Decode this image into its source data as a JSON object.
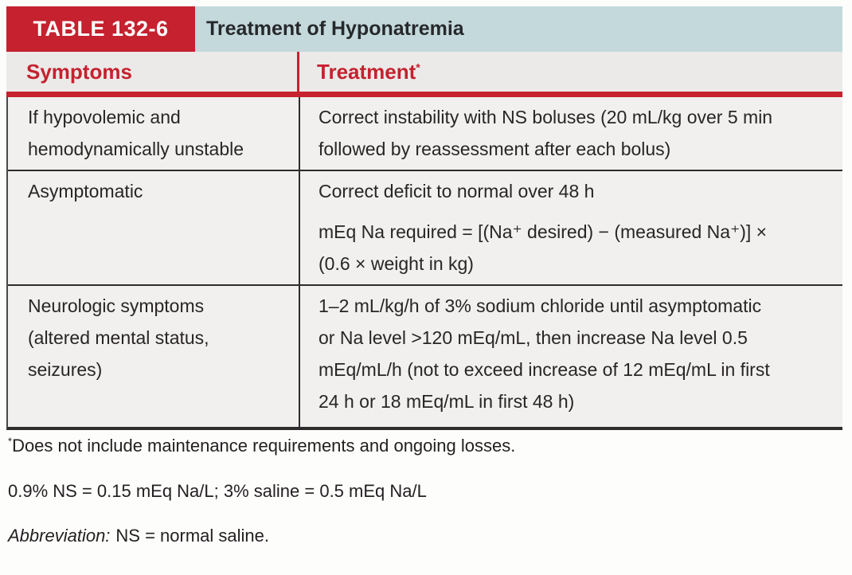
{
  "colors": {
    "accent_red": "#c5212f",
    "title_band_blue": "#c4d9dc",
    "column_header_bg": "#ebeae8",
    "body_bg": "#f1f0ee",
    "rule_black": "#2e2c2d"
  },
  "table": {
    "tag": "TABLE 132-6",
    "title": "Treatment of Hyponatremia",
    "columns": {
      "symptoms": "Symptoms",
      "treatment": "Treatment",
      "treatment_mark": "*"
    },
    "rows": [
      {
        "symptom_lines": [
          "If hypovolemic and",
          "hemodynamically unstable"
        ],
        "treatment_paragraphs": [
          {
            "lines": [
              "Correct instability with NS boluses (20 mL/kg over 5 min",
              "followed by reassessment after each bolus)"
            ]
          }
        ]
      },
      {
        "symptom_lines": [
          "Asymptomatic"
        ],
        "treatment_paragraphs": [
          {
            "lines": [
              "Correct deficit to normal over 48 h"
            ]
          },
          {
            "lines": [
              "mEq Na required = [(Na⁺ desired) − (measured Na⁺)] ×",
              "(0.6 × weight in kg)"
            ]
          }
        ]
      },
      {
        "symptom_lines": [
          "Neurologic symptoms",
          "(altered mental status,",
          "seizures)"
        ],
        "treatment_paragraphs": [
          {
            "lines": [
              "1–2 mL/kg/h of 3% sodium chloride until asymptomatic",
              "or Na level >120 mEq/mL, then increase Na level 0.5",
              "mEq/mL/h (not to exceed increase of 12 mEq/mL in first",
              "24 h or 18 mEq/mL in first 48 h)"
            ]
          }
        ]
      }
    ]
  },
  "footnotes": {
    "asterisk_mark": "*",
    "asterisk_text": "Does not include maintenance requirements and ongoing losses.",
    "equivalence": "0.9% NS = 0.15 mEq Na/L; 3% saline = 0.5 mEq Na/L",
    "abbreviation_label": "Abbreviation:",
    "abbreviation_text": "NS = normal saline."
  }
}
